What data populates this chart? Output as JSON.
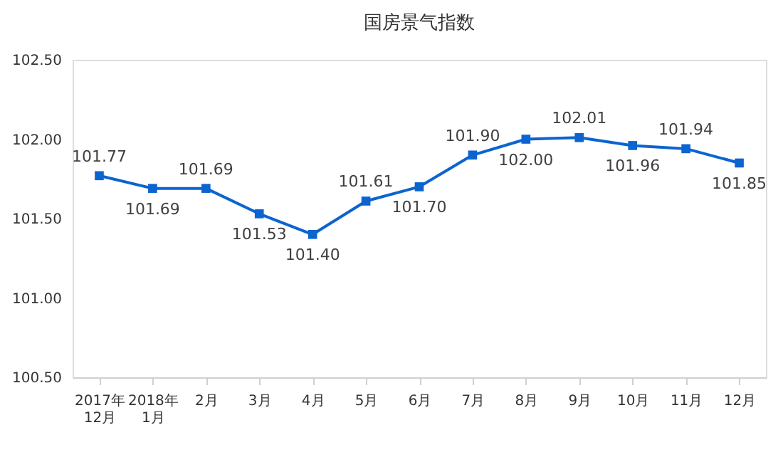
{
  "chart_data": {
    "type": "line",
    "title": "国房景气指数",
    "categories": [
      "2017年\n12月",
      "2018年\n1月",
      "2月",
      "3月",
      "4月",
      "5月",
      "6月",
      "7月",
      "8月",
      "9月",
      "10月",
      "11月",
      "12月"
    ],
    "series": [
      {
        "color": "#0b64d0",
        "values": [
          101.77,
          101.69,
          101.69,
          101.53,
          101.4,
          101.61,
          101.7,
          101.9,
          102.0,
          102.01,
          101.96,
          101.94,
          101.85
        ]
      }
    ],
    "ylim": [
      100.5,
      102.5
    ],
    "yticks": [
      {
        "value": 100.5,
        "label": "100.50"
      },
      {
        "value": 101.0,
        "label": "101.00"
      },
      {
        "value": 101.5,
        "label": "101.50"
      },
      {
        "value": 102.0,
        "label": "102.00"
      },
      {
        "value": 102.5,
        "label": "102.50"
      }
    ],
    "value_labels": [
      "101.77",
      "101.69",
      "101.69",
      "101.53",
      "101.40",
      "101.61",
      "101.70",
      "101.90",
      "102.00",
      "102.01",
      "101.96",
      "101.94",
      "101.85"
    ],
    "grid": false,
    "marker": "square",
    "line_style": "solid"
  }
}
